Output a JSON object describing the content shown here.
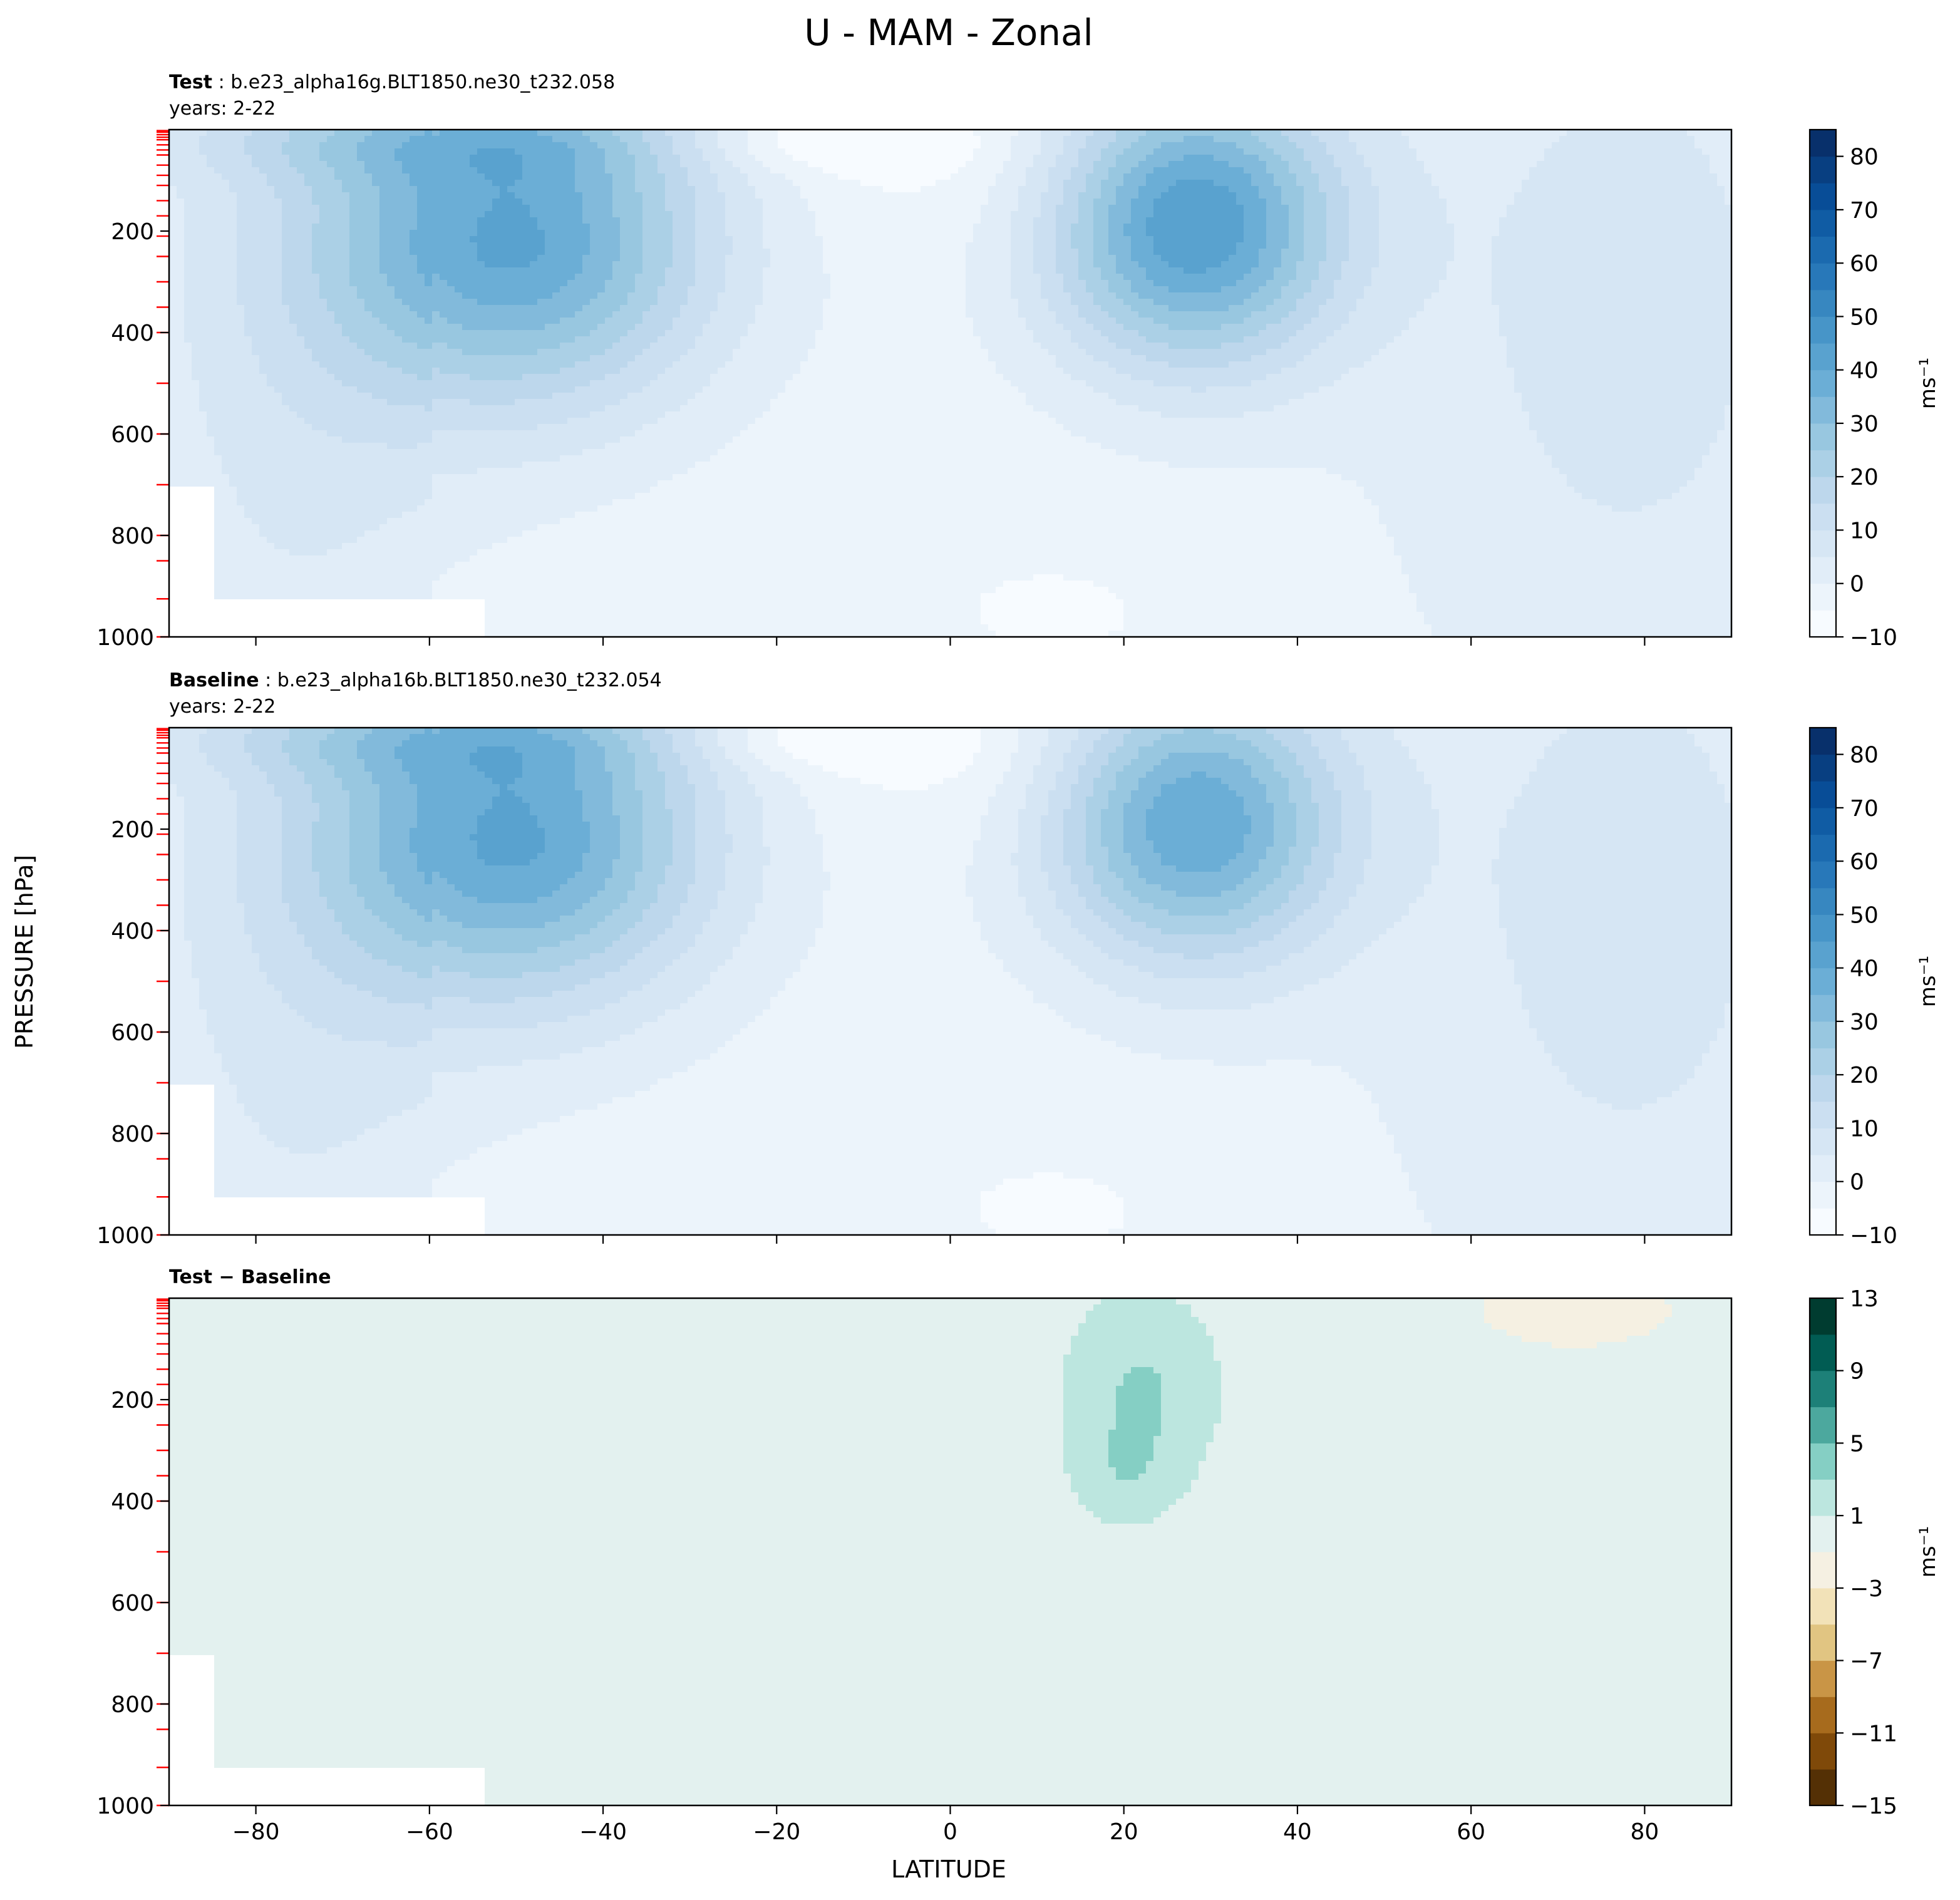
{
  "figure": {
    "title": "U - MAM - Zonal",
    "shared_ylabel": "PRESSURE [hPa]",
    "shared_xlabel": "LATITUDE"
  },
  "chart_data": [
    {
      "type": "heatmap",
      "title_bold": "Test",
      "title_rest": ": b.e23_alpha16g.BLT1850.ne30_t232.058",
      "subtitle": "years: 2-22",
      "xlabel": "",
      "ylabel": "PRESSURE [hPa]",
      "xlim": [
        -90,
        90
      ],
      "ylim": [
        1000,
        0
      ],
      "x_ticks": [
        -80,
        -60,
        -40,
        -20,
        0,
        20,
        40,
        60,
        80
      ],
      "y_ticks": [
        200,
        400,
        600,
        800,
        1000
      ],
      "colorbar": {
        "label": "ms⁻¹",
        "ticks": [
          -10,
          0,
          10,
          20,
          30,
          40,
          50,
          60,
          70,
          80
        ],
        "levels": [
          -10,
          -5,
          0,
          5,
          10,
          15,
          20,
          25,
          30,
          35,
          40,
          45,
          50,
          55,
          60,
          65,
          70,
          75,
          80,
          85
        ],
        "colormap": "Blues"
      },
      "features": [
        {
          "kind": "jet",
          "name": "SH jet",
          "lat": -50,
          "pressure": 220,
          "peak": 40
        },
        {
          "kind": "jet",
          "name": "NH jet",
          "lat": 28,
          "pressure": 180,
          "peak": 45
        },
        {
          "kind": "minimum",
          "name": "tropical easterlies",
          "lat": -15,
          "pressure": 30,
          "value": -5
        }
      ]
    },
    {
      "type": "heatmap",
      "title_bold": "Baseline",
      "title_rest": ": b.e23_alpha16b.BLT1850.ne30_t232.054",
      "subtitle": "years: 2-22",
      "xlabel": "",
      "ylabel": "PRESSURE [hPa]",
      "xlim": [
        -90,
        90
      ],
      "ylim": [
        1000,
        0
      ],
      "x_ticks": [
        -80,
        -60,
        -40,
        -20,
        0,
        20,
        40,
        60,
        80
      ],
      "y_ticks": [
        200,
        400,
        600,
        800,
        1000
      ],
      "colorbar": {
        "label": "ms⁻¹",
        "ticks": [
          -10,
          0,
          10,
          20,
          30,
          40,
          50,
          60,
          70,
          80
        ],
        "levels": [
          -10,
          -5,
          0,
          5,
          10,
          15,
          20,
          25,
          30,
          35,
          40,
          45,
          50,
          55,
          60,
          65,
          70,
          75,
          80,
          85
        ],
        "colormap": "Blues"
      },
      "features": [
        {
          "kind": "jet",
          "name": "SH jet",
          "lat": -50,
          "pressure": 220,
          "peak": 40
        },
        {
          "kind": "jet",
          "name": "NH jet",
          "lat": 28,
          "pressure": 190,
          "peak": 40
        },
        {
          "kind": "minimum",
          "name": "tropical easterlies",
          "lat": -15,
          "pressure": 30,
          "value": -5
        }
      ]
    },
    {
      "type": "heatmap",
      "title_bold": "Test − Baseline",
      "title_rest": "",
      "subtitle": "",
      "xlabel": "LATITUDE",
      "ylabel": "PRESSURE [hPa]",
      "xlim": [
        -90,
        90
      ],
      "ylim": [
        1000,
        0
      ],
      "x_ticks": [
        -80,
        -60,
        -40,
        -20,
        0,
        20,
        40,
        60,
        80
      ],
      "y_ticks": [
        200,
        400,
        600,
        800,
        1000
      ],
      "colorbar": {
        "label": "ms⁻¹",
        "ticks": [
          -15,
          -11,
          -7,
          -3,
          1,
          5,
          9,
          13
        ],
        "levels": [
          -15,
          -13,
          -11,
          -9,
          -7,
          -5,
          -3,
          -1,
          1,
          3,
          5,
          7,
          9,
          11,
          13
        ],
        "colormap": "BrBG"
      },
      "features": [
        {
          "kind": "positive_region",
          "lat_range": [
            15,
            35
          ],
          "pressure_range": [
            40,
            420
          ],
          "value": 2
        },
        {
          "kind": "negative_region",
          "lat_range": [
            63,
            82
          ],
          "pressure_range": [
            0,
            80
          ],
          "value": -1.5
        }
      ]
    }
  ]
}
